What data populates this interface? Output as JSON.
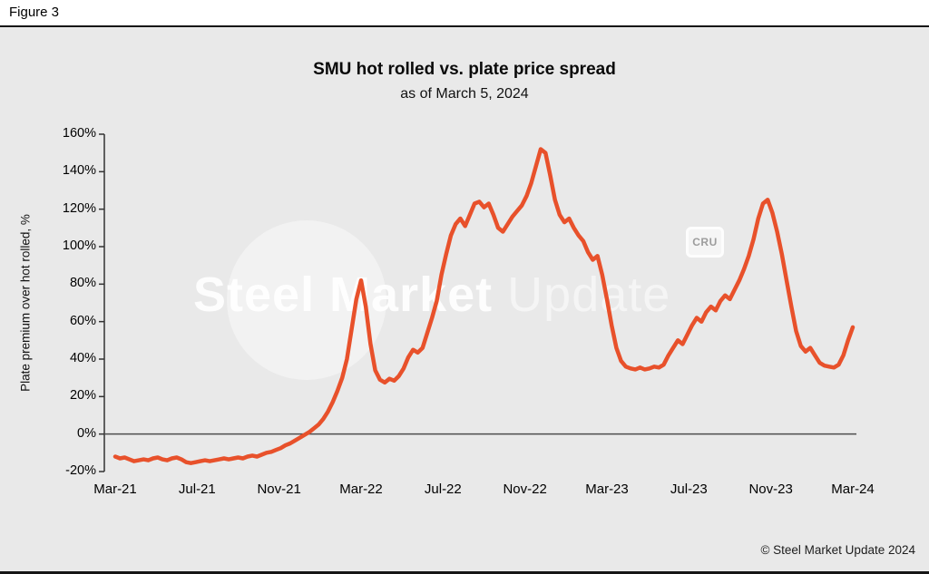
{
  "figure_label": "Figure 3",
  "chart": {
    "title": "SMU hot rolled vs. plate price spread",
    "subtitle": "as of March 5, 2024",
    "y_axis_label": "Plate premium over hot rolled, %"
  },
  "watermark": {
    "bold": "Steel Market",
    "light": "Update",
    "badge": "CRU"
  },
  "footer": {
    "copyright": "© Steel Market Update 2024"
  },
  "colors": {
    "line": "#e8512b",
    "background": "#e9e9e9",
    "axis": "#333333",
    "zero_line": "#4d4d4d"
  },
  "chart_data": {
    "type": "line",
    "title": "SMU hot rolled vs. plate price spread",
    "subtitle": "as of March 5, 2024",
    "xlabel": "",
    "ylabel": "Plate premium over hot rolled, %",
    "ylim": [
      -20,
      160
    ],
    "grid": false,
    "legend": "none",
    "x_tick_labels": [
      "Mar-21",
      "Jul-21",
      "Nov-21",
      "Mar-22",
      "Jul-22",
      "Nov-22",
      "Mar-23",
      "Jul-23",
      "Nov-23",
      "Mar-24"
    ],
    "y_ticks": [
      160,
      140,
      120,
      100,
      80,
      60,
      40,
      20,
      0,
      -20
    ],
    "y_tick_labels": [
      "160%",
      "140%",
      "120%",
      "100%",
      "80%",
      "60%",
      "40%",
      "20%",
      "0%",
      "-20%"
    ],
    "x_unit": "weekly observations, Mar-21 through Mar-24",
    "series": [
      {
        "name": "Plate premium over hot rolled, %",
        "color": "#e8512b",
        "values": [
          -12,
          -13,
          -12.5,
          -13.5,
          -14.5,
          -14,
          -13.5,
          -14,
          -13,
          -12.5,
          -13.5,
          -14,
          -13,
          -12.5,
          -13.5,
          -15,
          -15.5,
          -15,
          -14.5,
          -14,
          -14.5,
          -14,
          -13.5,
          -13,
          -13.5,
          -13,
          -12.5,
          -13,
          -12,
          -11.5,
          -12,
          -11,
          -10,
          -9.5,
          -8.5,
          -7.5,
          -6,
          -5,
          -3.5,
          -2,
          -0.5,
          1,
          3,
          5,
          8,
          12,
          17,
          23,
          30,
          40,
          56,
          72,
          82,
          68,
          48,
          34,
          29,
          27.5,
          29.5,
          28.5,
          31,
          35,
          41,
          45,
          43.5,
          46,
          54,
          62,
          71,
          85,
          96,
          106,
          112,
          115,
          111,
          117,
          123,
          124,
          121,
          123,
          117,
          110,
          108,
          112,
          116,
          119,
          122,
          127,
          134,
          143,
          152,
          150,
          138,
          125,
          117,
          113,
          115,
          110,
          106,
          103,
          97,
          93,
          95,
          85,
          72,
          58,
          46,
          39,
          36,
          35,
          34.5,
          35.5,
          34.5,
          35,
          36,
          35.5,
          37,
          42,
          46,
          50,
          48,
          53,
          58,
          62,
          60,
          65,
          68,
          66,
          71,
          74,
          72,
          77,
          82,
          88,
          95,
          104,
          115,
          123,
          125,
          118,
          108,
          96,
          82,
          68,
          55,
          47,
          44,
          46,
          42,
          38,
          36.5,
          36,
          35.5,
          37,
          42,
          50,
          57
        ]
      }
    ]
  }
}
